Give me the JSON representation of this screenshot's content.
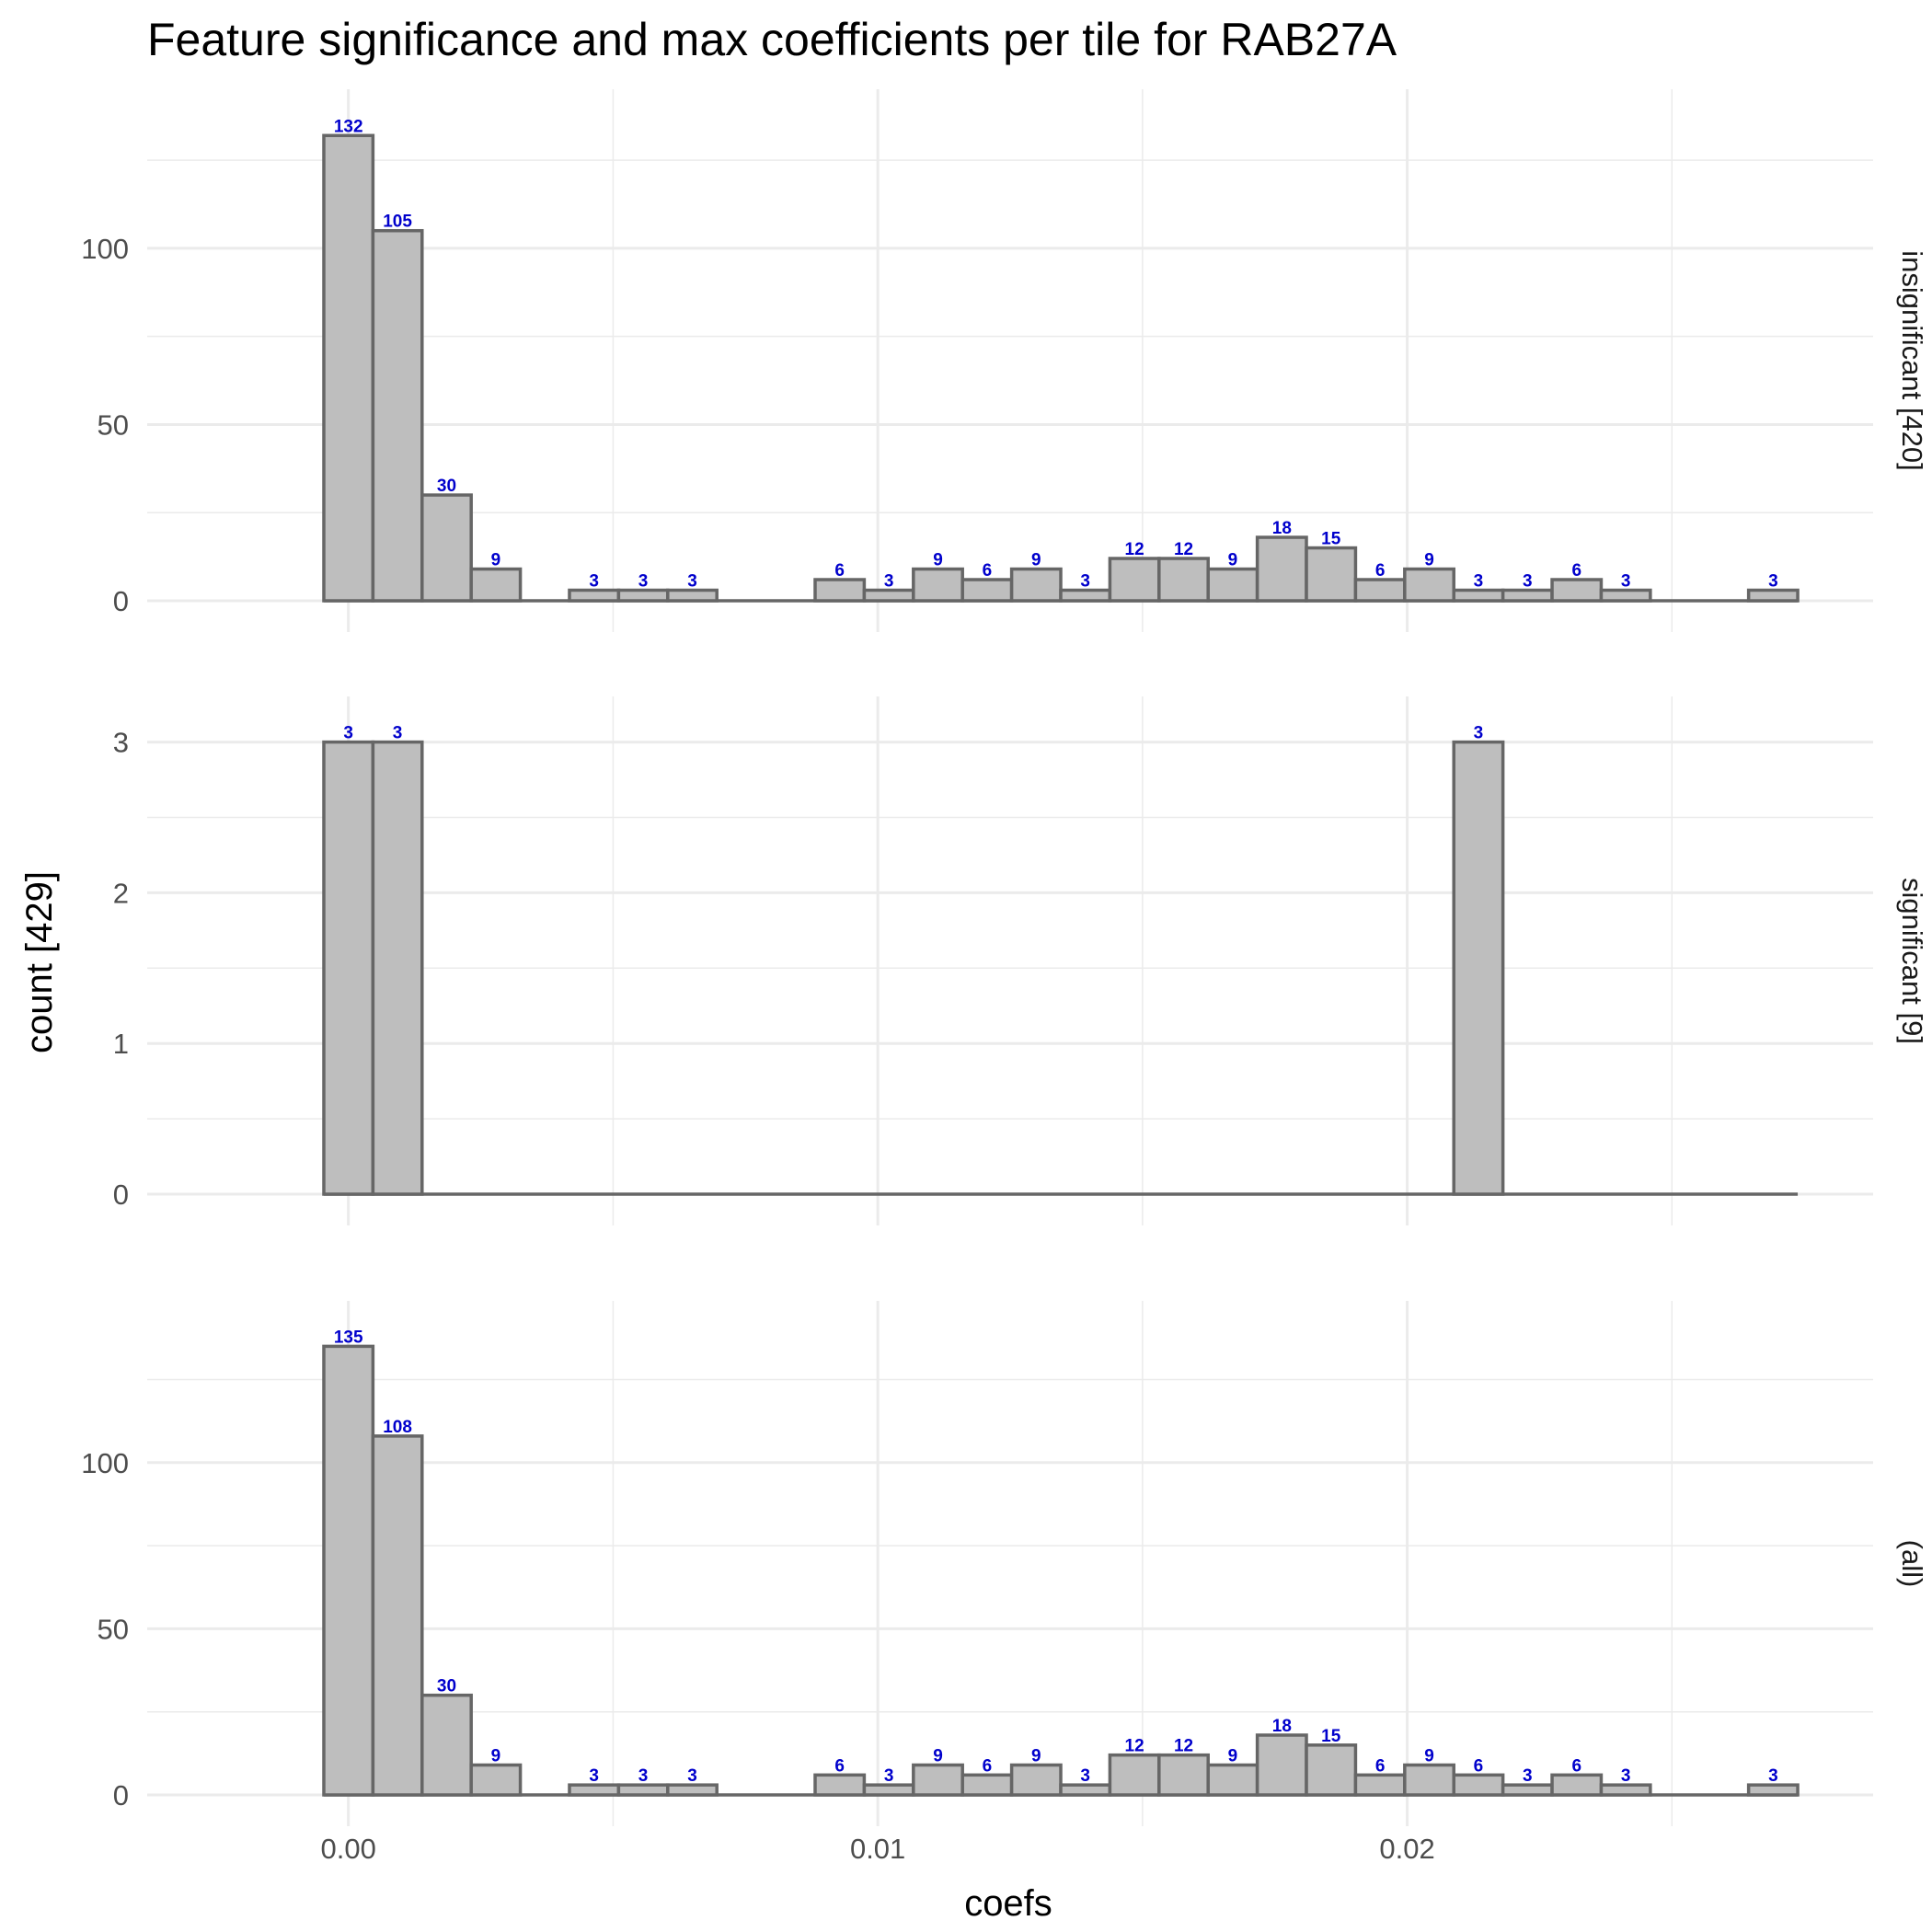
{
  "chart_data": {
    "type": "bar",
    "title": "Feature significance and max coefficients per tile for RAB27A",
    "xlabel": "coefs",
    "ylabel": "count [429]",
    "x_ticks": [
      "0.00",
      "0.01",
      "0.02"
    ],
    "x_tick_values": [
      0.0,
      0.01,
      0.02
    ],
    "xlim": [
      -0.0038,
      0.0288
    ],
    "binwidth": 0.000928,
    "bin_centers": [
      0.0,
      0.000928,
      0.001856,
      0.002784,
      0.003712,
      0.00464,
      0.005568,
      0.006496,
      0.007424,
      0.008352,
      0.00928,
      0.010208,
      0.011136,
      0.012064,
      0.012992,
      0.01392,
      0.014848,
      0.015776,
      0.016704,
      0.017632,
      0.01856,
      0.019488,
      0.020416,
      0.021344,
      0.022272,
      0.0232,
      0.024128,
      0.025056,
      0.025984,
      0.026912
    ],
    "grid": true,
    "panels": [
      {
        "strip": "insignificant [420]",
        "y_ticks": [
          0,
          50,
          100
        ],
        "ylim": [
          0,
          138.6
        ],
        "values": [
          132,
          105,
          30,
          9,
          0,
          3,
          3,
          3,
          0,
          0,
          6,
          3,
          9,
          6,
          9,
          3,
          12,
          12,
          9,
          18,
          15,
          6,
          9,
          3,
          3,
          6,
          3,
          0,
          0,
          3
        ]
      },
      {
        "strip": "significant [9]",
        "y_ticks": [
          0,
          1,
          2,
          3
        ],
        "ylim": [
          0,
          3.15
        ],
        "values": [
          3,
          3,
          0,
          0,
          0,
          0,
          0,
          0,
          0,
          0,
          0,
          0,
          0,
          0,
          0,
          0,
          0,
          0,
          0,
          0,
          0,
          0,
          0,
          3,
          0,
          0,
          0,
          0,
          0,
          0
        ]
      },
      {
        "strip": "(all)",
        "y_ticks": [
          0,
          50,
          100
        ],
        "ylim": [
          0,
          141.75
        ],
        "values": [
          135,
          108,
          30,
          9,
          0,
          3,
          3,
          3,
          0,
          0,
          6,
          3,
          9,
          6,
          9,
          3,
          12,
          12,
          9,
          18,
          15,
          6,
          9,
          6,
          3,
          6,
          3,
          0,
          0,
          3
        ]
      }
    ]
  }
}
